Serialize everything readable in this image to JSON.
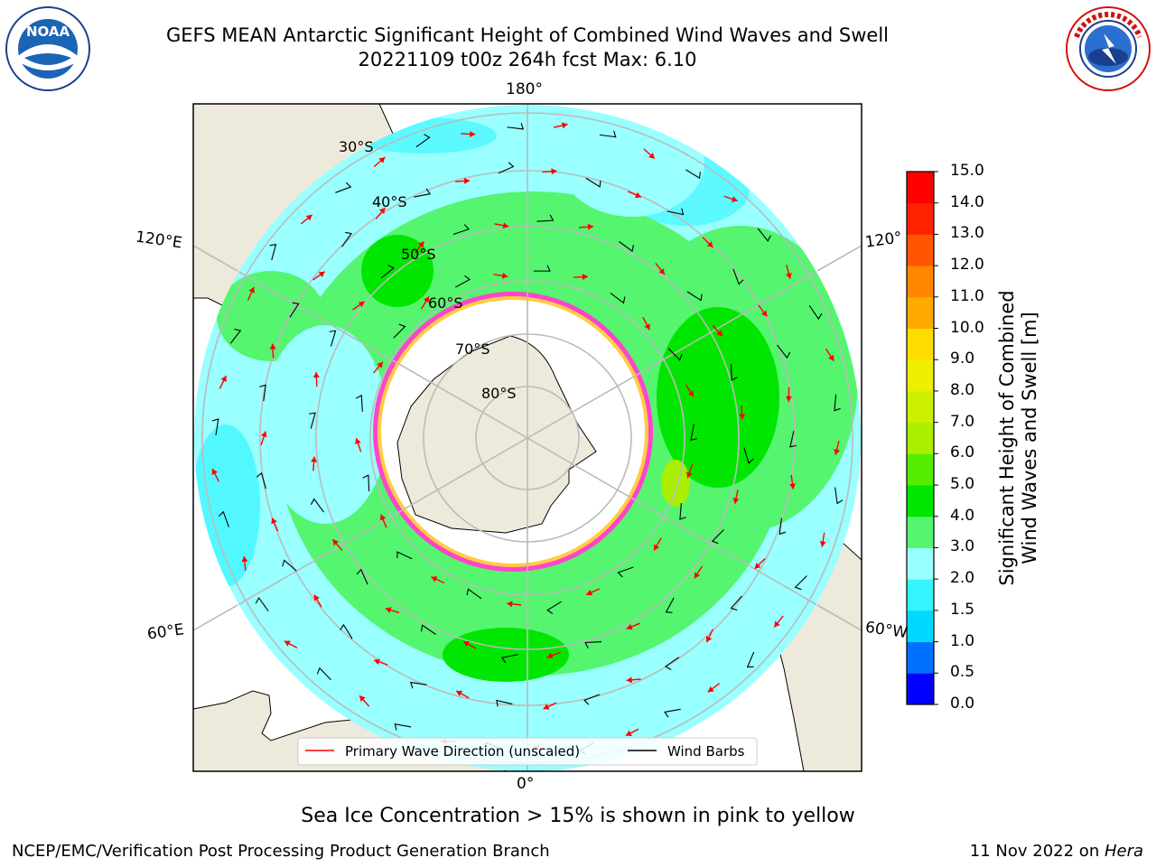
{
  "header": {
    "title_line1": "GEFS MEAN Antarctic Significant Height of Combined Wind Waves and Swell",
    "title_line2": "20221109 t00z 264h fcst   Max: 6.10"
  },
  "logos": {
    "left": {
      "icon": "noaa-logo-icon",
      "text": "NOAA"
    },
    "right": {
      "icon": "nws-logo-icon",
      "text": "NATIONAL WEATHER SERVICE"
    }
  },
  "map": {
    "projection": "south-polar-stereographic",
    "longitude_labels": {
      "top": "180°",
      "bottom": "0°",
      "upper_left": "120°E",
      "lower_left": "60°E",
      "upper_right": "120°",
      "lower_right": "60°W"
    },
    "latitude_labels": [
      "30°S",
      "40°S",
      "50°S",
      "60°S",
      "70°S",
      "80°S"
    ],
    "colors": {
      "land": "#eeeadb",
      "ice_interior": "#ffffff",
      "ice_edge_pink": "#ff44cc",
      "ice_edge_yellow": "#ffcc44",
      "wave_direction_arrow": "#ff0000",
      "wind_barb": "#000000",
      "gridline": "#bbbbbb"
    }
  },
  "legend": {
    "items": [
      {
        "label": "Primary Wave Direction (unscaled)",
        "color": "#ff0000"
      },
      {
        "label": "Wind Barbs",
        "color": "#000000"
      }
    ]
  },
  "colorbar": {
    "title_line1": "Significant Height of Combined",
    "title_line2": "Wind Waves and Swell [m]",
    "ticks": [
      "0.0",
      "0.5",
      "1.0",
      "1.5",
      "2.0",
      "3.0",
      "4.0",
      "5.0",
      "6.0",
      "7.0",
      "8.0",
      "9.0",
      "10.0",
      "11.0",
      "12.0",
      "13.0",
      "14.0",
      "15.0"
    ],
    "colors": [
      "#0000ff",
      "#0070ff",
      "#00d9ff",
      "#33f5ff",
      "#99ffff",
      "#55f570",
      "#00e600",
      "#55ee00",
      "#aaee00",
      "#ccee00",
      "#eeee00",
      "#ffdd00",
      "#ffaa00",
      "#ff8800",
      "#ff5500",
      "#ff2200",
      "#ff0000"
    ]
  },
  "footer": {
    "note": "Sea Ice Concentration > 15% is shown in pink to yellow",
    "credit_left": "NCEP/EMC/Verification Post Processing Product Generation Branch",
    "credit_right_date": "11 Nov 2022 on ",
    "credit_right_host": "Hera"
  }
}
